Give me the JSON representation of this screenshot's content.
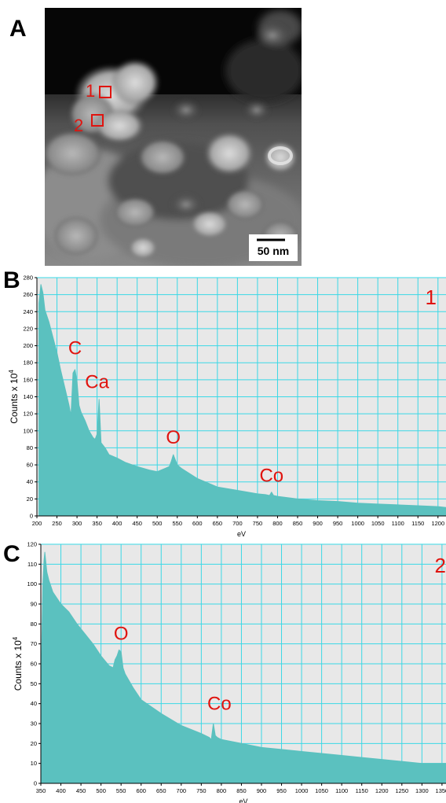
{
  "figure": {
    "panel_a": {
      "letter": "A",
      "regions": [
        "1",
        "2"
      ],
      "scale_bar": "50 nm"
    },
    "panel_b": {
      "letter": "B"
    },
    "panel_c": {
      "letter": "C"
    }
  },
  "colors": {
    "fill": "#5bc1bf",
    "grid": "#3ad8e6",
    "plot_bg": "#e8e8e8",
    "annotation": "#e0140f"
  },
  "chart_data": [
    {
      "type": "area",
      "panel": "B",
      "xlabel": "eV",
      "ylabel": "Counts x 10",
      "ylabel_sup": "4",
      "xlim": [
        200,
        1220
      ],
      "ylim": [
        0,
        280
      ],
      "xticks": [
        200,
        250,
        300,
        350,
        400,
        450,
        500,
        550,
        600,
        650,
        700,
        750,
        800,
        850,
        900,
        950,
        1000,
        1050,
        1100,
        1150,
        1200
      ],
      "yticks": [
        0,
        20,
        40,
        60,
        80,
        100,
        120,
        140,
        160,
        180,
        200,
        220,
        240,
        260,
        280
      ],
      "grid": true,
      "region_label": "1",
      "annotations": [
        {
          "text": "C",
          "x": 295,
          "y": 190
        },
        {
          "text": "Ca",
          "x": 350,
          "y": 150
        },
        {
          "text": "O",
          "x": 540,
          "y": 85
        },
        {
          "text": "Co",
          "x": 785,
          "y": 40
        }
      ],
      "series": [
        {
          "x": [
            205,
            210,
            215,
            220,
            230,
            240,
            250,
            260,
            270,
            280,
            285,
            290,
            295,
            300,
            305,
            310,
            320,
            330,
            340,
            345,
            350,
            355,
            360,
            370,
            380,
            400,
            420,
            450,
            480,
            500,
            520,
            530,
            535,
            540,
            545,
            550,
            555,
            560,
            580,
            600,
            650,
            700,
            750,
            770,
            780,
            785,
            790,
            800,
            850,
            900,
            950,
            1000,
            1050,
            1100,
            1150,
            1200,
            1220
          ],
          "values": [
            250,
            272,
            262,
            242,
            228,
            210,
            192,
            170,
            150,
            130,
            118,
            168,
            172,
            158,
            130,
            122,
            112,
            100,
            92,
            90,
            96,
            137,
            86,
            80,
            72,
            68,
            63,
            58,
            54,
            52,
            56,
            58,
            64,
            72,
            66,
            60,
            58,
            56,
            50,
            44,
            34,
            30,
            26,
            25,
            24,
            28,
            24,
            23,
            20,
            18,
            17,
            15,
            14,
            13,
            12,
            11,
            10
          ]
        }
      ]
    },
    {
      "type": "area",
      "panel": "C",
      "xlabel": "eV",
      "ylabel": "Counts x 10",
      "ylabel_sup": "4",
      "xlim": [
        350,
        1360
      ],
      "ylim": [
        0,
        120
      ],
      "xticks": [
        350,
        400,
        450,
        500,
        550,
        600,
        650,
        700,
        750,
        800,
        850,
        900,
        950,
        1000,
        1050,
        1100,
        1150,
        1200,
        1250,
        1300,
        1350
      ],
      "yticks": [
        0,
        10,
        20,
        30,
        40,
        50,
        60,
        70,
        80,
        90,
        100,
        110,
        120
      ],
      "grid": true,
      "region_label": "2",
      "annotations": [
        {
          "text": "O",
          "x": 550,
          "y": 72
        },
        {
          "text": "Co",
          "x": 795,
          "y": 37
        }
      ],
      "series": [
        {
          "x": [
            352,
            355,
            358,
            360,
            362,
            365,
            370,
            380,
            390,
            400,
            420,
            440,
            460,
            480,
            500,
            520,
            530,
            535,
            540,
            545,
            550,
            555,
            560,
            580,
            600,
            650,
            700,
            750,
            770,
            775,
            780,
            785,
            790,
            800,
            850,
            900,
            950,
            1000,
            1050,
            1100,
            1150,
            1200,
            1250,
            1300,
            1350,
            1360
          ],
          "values": [
            65,
            100,
            112,
            116,
            112,
            106,
            102,
            96,
            93,
            90,
            86,
            80,
            75,
            70,
            64,
            59,
            58,
            62,
            64,
            67,
            66,
            58,
            55,
            48,
            42,
            35,
            29,
            25,
            23,
            22,
            30,
            24,
            23,
            22,
            20,
            18,
            17,
            16,
            15,
            14,
            13,
            12,
            11,
            10,
            10,
            10
          ]
        }
      ]
    }
  ]
}
